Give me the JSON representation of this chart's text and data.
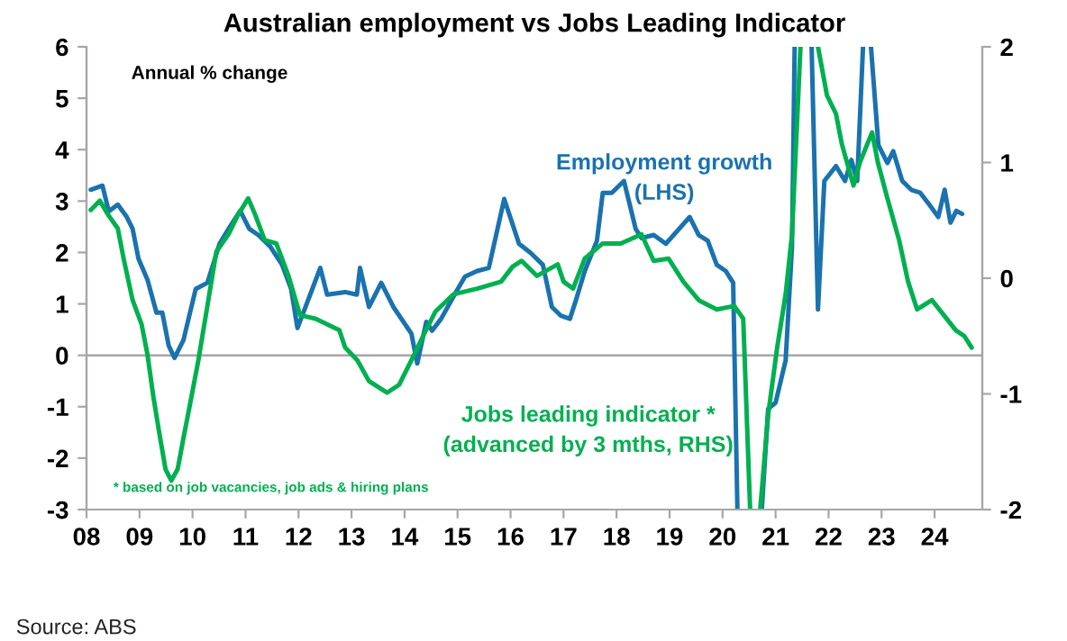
{
  "chart_data": {
    "type": "line",
    "title": "Australian employment vs Jobs Leading Indicator",
    "annotations": [
      "Annual % change",
      "(LHS)",
      "(advanced by 3 mths, RHS)",
      "* based on job vacancies, job ads & hiring plans",
      "Source: ABS"
    ],
    "series": [
      {
        "name": "Employment growth",
        "color": "#1a72ae",
        "x": [
          2008.08,
          2008.3,
          2008.42,
          2008.59,
          2008.76,
          2008.87,
          2008.98,
          2009.15,
          2009.32,
          2009.43,
          2009.55,
          2009.66,
          2009.83,
          2010.06,
          2010.28,
          2010.51,
          2010.68,
          2010.9,
          2011.07,
          2011.24,
          2011.47,
          2011.69,
          2011.86,
          2011.98,
          2012.09,
          2012.26,
          2012.41,
          2012.54,
          2012.88,
          2013.1,
          2013.16,
          2013.33,
          2013.56,
          2013.79,
          2014.13,
          2014.24,
          2014.41,
          2014.52,
          2014.69,
          2014.97,
          2015.14,
          2015.37,
          2015.59,
          2015.88,
          2016.16,
          2016.38,
          2016.61,
          2016.78,
          2016.95,
          2017.12,
          2017.23,
          2017.4,
          2017.63,
          2017.74,
          2017.91,
          2018.14,
          2018.36,
          2018.47,
          2018.7,
          2018.93,
          2019.38,
          2019.55,
          2019.72,
          2019.89,
          2020.06,
          2020.2,
          2020.28,
          2020.5,
          2020.74,
          2020.86,
          2021.0,
          2021.19,
          2021.31,
          2021.36,
          2021.6,
          2021.68,
          2021.8,
          2021.92,
          2022.14,
          2022.31,
          2022.43,
          2022.54,
          2022.65,
          2022.72,
          2022.8,
          2022.94,
          2023.11,
          2023.22,
          2023.39,
          2023.56,
          2023.73,
          2023.9,
          2024.07,
          2024.19,
          2024.3,
          2024.41,
          2024.52
        ],
        "values": [
          3.22,
          3.3,
          2.8,
          2.93,
          2.69,
          2.46,
          1.88,
          1.47,
          0.83,
          0.83,
          0.19,
          -0.05,
          0.3,
          1.29,
          1.41,
          2.17,
          2.46,
          2.81,
          2.46,
          2.34,
          2.11,
          1.76,
          1.29,
          0.53,
          0.83,
          1.29,
          1.7,
          1.18,
          1.23,
          1.18,
          1.7,
          0.94,
          1.41,
          0.94,
          0.42,
          -0.16,
          0.65,
          0.48,
          0.71,
          1.23,
          1.53,
          1.64,
          1.7,
          3.04,
          2.17,
          1.99,
          1.76,
          0.94,
          0.77,
          0.71,
          1.06,
          1.64,
          2.23,
          3.16,
          3.16,
          3.39,
          2.46,
          2.28,
          2.34,
          2.17,
          2.69,
          2.34,
          2.23,
          1.76,
          1.64,
          1.41,
          -3,
          null,
          -3,
          -1.04,
          -0.92,
          -0.1,
          2.11,
          6,
          null,
          6,
          0.89,
          3.39,
          3.68,
          3.39,
          3.8,
          3.39,
          6,
          null,
          6,
          4.09,
          3.74,
          3.97,
          3.39,
          3.22,
          3.16,
          2.93,
          2.69,
          3.22,
          2.58,
          2.81,
          2.75
        ]
      },
      {
        "name": "Jobs leading indicator *",
        "color": "#00b050",
        "axis": "y2",
        "x": [
          2008.08,
          2008.25,
          2008.42,
          2008.59,
          2008.7,
          2008.87,
          2009.04,
          2009.15,
          2009.26,
          2009.37,
          2009.49,
          2009.6,
          2009.72,
          2009.83,
          2009.94,
          2010.11,
          2010.28,
          2010.45,
          2010.68,
          2010.85,
          2011.05,
          2011.19,
          2011.36,
          2011.58,
          2011.81,
          2012.03,
          2012.32,
          2012.77,
          2012.88,
          2013.11,
          2013.33,
          2013.67,
          2013.9,
          2014.13,
          2014.35,
          2014.58,
          2014.92,
          2015.37,
          2015.82,
          2016.04,
          2016.21,
          2016.5,
          2016.89,
          2017.0,
          2017.18,
          2017.4,
          2017.74,
          2018.08,
          2018.47,
          2018.7,
          2018.98,
          2019.26,
          2019.55,
          2019.89,
          2020.22,
          2020.39,
          2020.52,
          2020.6,
          2020.71,
          2020.86,
          2021.03,
          2021.19,
          2021.31,
          2021.47,
          2021.6,
          2021.8,
          2021.97,
          2022.14,
          2022.25,
          2022.47,
          2022.59,
          2022.82,
          2022.93,
          2023.11,
          2023.33,
          2023.5,
          2023.67,
          2023.95,
          2024.4,
          2024.56,
          2024.7
        ],
        "values": [
          0.59,
          0.67,
          0.54,
          0.43,
          0.17,
          -0.19,
          -0.4,
          -0.66,
          -1.02,
          -1.33,
          -1.65,
          -1.75,
          -1.65,
          -1.38,
          -1.12,
          -0.71,
          -0.24,
          0.23,
          0.38,
          0.54,
          0.69,
          0.54,
          0.33,
          0.3,
          0.02,
          -0.32,
          -0.35,
          -0.45,
          -0.6,
          -0.71,
          -0.89,
          -0.99,
          -0.92,
          -0.71,
          -0.5,
          -0.29,
          -0.14,
          -0.09,
          -0.03,
          0.1,
          0.15,
          0.02,
          0.12,
          -0.03,
          -0.09,
          0.17,
          0.3,
          0.3,
          0.38,
          0.15,
          0.17,
          -0.03,
          -0.19,
          -0.27,
          -0.24,
          -0.35,
          -2,
          null,
          -2,
          -1.18,
          -0.6,
          -0.14,
          0.38,
          2,
          null,
          2,
          1.58,
          1.42,
          1.16,
          0.8,
          1.0,
          1.26,
          1.0,
          0.69,
          0.33,
          -0.03,
          -0.27,
          -0.19,
          -0.45,
          -0.5,
          -0.6
        ]
      }
    ],
    "xlim": [
      2008,
      2024.9
    ],
    "xticks": [
      {
        "value": 2008,
        "label": "08"
      },
      {
        "value": 2009,
        "label": "09"
      },
      {
        "value": 2010,
        "label": "10"
      },
      {
        "value": 2011,
        "label": "11"
      },
      {
        "value": 2012,
        "label": "12"
      },
      {
        "value": 2013,
        "label": "13"
      },
      {
        "value": 2014,
        "label": "14"
      },
      {
        "value": 2015,
        "label": "15"
      },
      {
        "value": 2016,
        "label": "16"
      },
      {
        "value": 2017,
        "label": "17"
      },
      {
        "value": 2018,
        "label": "18"
      },
      {
        "value": 2019,
        "label": "19"
      },
      {
        "value": 2020,
        "label": "20"
      },
      {
        "value": 2021,
        "label": "21"
      },
      {
        "value": 2022,
        "label": "22"
      },
      {
        "value": 2023,
        "label": "23"
      },
      {
        "value": 2024,
        "label": "24"
      }
    ],
    "ylim": [
      -3,
      6
    ],
    "yticks": [
      -3,
      -2,
      -1,
      0,
      1,
      2,
      3,
      4,
      5,
      6
    ],
    "y2lim": [
      -2,
      2
    ],
    "y2ticks": [
      -2,
      -1,
      0,
      1,
      2
    ],
    "ref_lines": [
      {
        "axis": "y",
        "value": 0,
        "color": "#a6a6a6"
      }
    ],
    "grid": false,
    "legend": false,
    "line_style": "solid",
    "marker": "none"
  }
}
